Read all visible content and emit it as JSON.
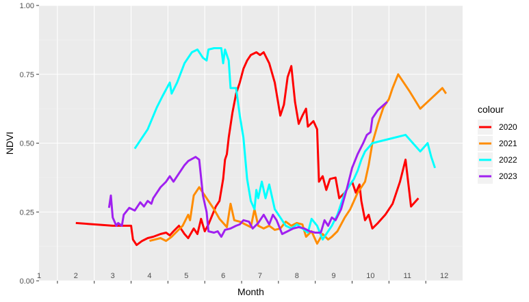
{
  "chart_data": {
    "type": "line",
    "title": "",
    "xlabel": "Month",
    "ylabel": "NDVI",
    "ylim": [
      0,
      1
    ],
    "y_ticks": [
      0,
      0.25,
      0.5,
      0.75,
      1
    ],
    "y_tick_labels": [
      "0.00",
      "0.25",
      "0.50",
      "0.75",
      "1.00"
    ],
    "xlim": [
      1,
      12.5
    ],
    "x_ticks": [
      1,
      2,
      3,
      4,
      5,
      6,
      7,
      8,
      9,
      10,
      11,
      12
    ],
    "x_tick_labels": [
      "1",
      "2",
      "3",
      "4",
      "5",
      "6",
      "7",
      "8",
      "9",
      "10",
      "11",
      "12"
    ],
    "grid": true,
    "legend": {
      "title": "colour",
      "position": "right"
    },
    "series": [
      {
        "name": "2020",
        "color": "#ff0000",
        "points": [
          [
            2,
            0.21
          ],
          [
            2.5,
            0.205
          ],
          [
            3,
            0.2
          ],
          [
            3.5,
            0.2
          ],
          [
            3.55,
            0.15
          ],
          [
            3.65,
            0.13
          ],
          [
            3.8,
            0.145
          ],
          [
            3.95,
            0.155
          ],
          [
            4.1,
            0.16
          ],
          [
            4.3,
            0.17
          ],
          [
            4.45,
            0.175
          ],
          [
            4.55,
            0.165
          ],
          [
            4.65,
            0.18
          ],
          [
            4.8,
            0.2
          ],
          [
            4.95,
            0.17
          ],
          [
            5.05,
            0.155
          ],
          [
            5.2,
            0.19
          ],
          [
            5.3,
            0.17
          ],
          [
            5.4,
            0.225
          ],
          [
            5.5,
            0.18
          ],
          [
            5.6,
            0.205
          ],
          [
            5.8,
            0.27
          ],
          [
            5.9,
            0.29
          ],
          [
            6,
            0.37
          ],
          [
            6.05,
            0.44
          ],
          [
            6.1,
            0.46
          ],
          [
            6.15,
            0.52
          ],
          [
            6.25,
            0.61
          ],
          [
            6.35,
            0.68
          ],
          [
            6.45,
            0.72
          ],
          [
            6.55,
            0.77
          ],
          [
            6.65,
            0.8
          ],
          [
            6.75,
            0.82
          ],
          [
            6.9,
            0.83
          ],
          [
            7,
            0.82
          ],
          [
            7.1,
            0.83
          ],
          [
            7.25,
            0.79
          ],
          [
            7.4,
            0.72
          ],
          [
            7.55,
            0.6
          ],
          [
            7.65,
            0.64
          ],
          [
            7.75,
            0.74
          ],
          [
            7.85,
            0.78
          ],
          [
            7.95,
            0.65
          ],
          [
            8.05,
            0.57
          ],
          [
            8.15,
            0.6
          ],
          [
            8.25,
            0.625
          ],
          [
            8.3,
            0.56
          ],
          [
            8.45,
            0.58
          ],
          [
            8.55,
            0.55
          ],
          [
            8.6,
            0.36
          ],
          [
            8.7,
            0.38
          ],
          [
            8.8,
            0.33
          ],
          [
            8.9,
            0.37
          ],
          [
            9.05,
            0.375
          ],
          [
            9.15,
            0.3
          ],
          [
            9.3,
            0.32
          ],
          [
            9.4,
            0.34
          ],
          [
            9.5,
            0.36
          ],
          [
            9.6,
            0.32
          ],
          [
            9.7,
            0.35
          ],
          [
            9.75,
            0.29
          ],
          [
            9.85,
            0.22
          ],
          [
            9.95,
            0.24
          ],
          [
            10.05,
            0.19
          ],
          [
            10.2,
            0.21
          ],
          [
            10.4,
            0.24
          ],
          [
            10.6,
            0.28
          ],
          [
            10.8,
            0.36
          ],
          [
            10.95,
            0.44
          ],
          [
            11.1,
            0.27
          ],
          [
            11.3,
            0.3
          ]
        ]
      },
      {
        "name": "2021",
        "color": "#ff8c00",
        "points": [
          [
            4,
            0.145
          ],
          [
            4.3,
            0.155
          ],
          [
            4.45,
            0.145
          ],
          [
            4.6,
            0.16
          ],
          [
            4.75,
            0.18
          ],
          [
            4.9,
            0.2
          ],
          [
            5.05,
            0.24
          ],
          [
            5.1,
            0.22
          ],
          [
            5.2,
            0.31
          ],
          [
            5.35,
            0.34
          ],
          [
            5.5,
            0.31
          ],
          [
            5.6,
            0.29
          ],
          [
            5.75,
            0.26
          ],
          [
            5.9,
            0.225
          ],
          [
            6.1,
            0.195
          ],
          [
            6.2,
            0.28
          ],
          [
            6.3,
            0.22
          ],
          [
            6.45,
            0.215
          ],
          [
            6.6,
            0.205
          ],
          [
            6.75,
            0.195
          ],
          [
            6.85,
            0.26
          ],
          [
            6.95,
            0.2
          ],
          [
            7.1,
            0.19
          ],
          [
            7.25,
            0.2
          ],
          [
            7.4,
            0.185
          ],
          [
            7.55,
            0.19
          ],
          [
            7.7,
            0.215
          ],
          [
            7.85,
            0.2
          ],
          [
            8,
            0.21
          ],
          [
            8.15,
            0.205
          ],
          [
            8.25,
            0.16
          ],
          [
            8.4,
            0.18
          ],
          [
            8.55,
            0.135
          ],
          [
            8.7,
            0.17
          ],
          [
            8.85,
            0.15
          ],
          [
            8.95,
            0.16
          ],
          [
            9.1,
            0.18
          ],
          [
            9.3,
            0.23
          ],
          [
            9.45,
            0.26
          ],
          [
            9.55,
            0.29
          ],
          [
            9.65,
            0.32
          ],
          [
            9.75,
            0.34
          ],
          [
            9.85,
            0.36
          ],
          [
            9.95,
            0.42
          ],
          [
            10.05,
            0.5
          ],
          [
            10.2,
            0.57
          ],
          [
            10.35,
            0.63
          ],
          [
            10.5,
            0.66
          ],
          [
            10.6,
            0.7
          ],
          [
            10.75,
            0.75
          ],
          [
            11.05,
            0.69
          ],
          [
            11.35,
            0.625
          ],
          [
            11.95,
            0.7
          ],
          [
            12.05,
            0.68
          ]
        ]
      },
      {
        "name": "2022",
        "color": "#00ffff",
        "points": [
          [
            3.6,
            0.48
          ],
          [
            3.95,
            0.55
          ],
          [
            4.2,
            0.63
          ],
          [
            4.35,
            0.67
          ],
          [
            4.55,
            0.72
          ],
          [
            4.6,
            0.68
          ],
          [
            4.75,
            0.72
          ],
          [
            4.95,
            0.79
          ],
          [
            5.15,
            0.83
          ],
          [
            5.3,
            0.84
          ],
          [
            5.45,
            0.81
          ],
          [
            5.55,
            0.8
          ],
          [
            5.6,
            0.84
          ],
          [
            5.75,
            0.845
          ],
          [
            5.95,
            0.845
          ],
          [
            6,
            0.79
          ],
          [
            6.05,
            0.84
          ],
          [
            6.15,
            0.8
          ],
          [
            6.2,
            0.7
          ],
          [
            6.35,
            0.7
          ],
          [
            6.45,
            0.6
          ],
          [
            6.55,
            0.52
          ],
          [
            6.65,
            0.37
          ],
          [
            6.75,
            0.29
          ],
          [
            6.85,
            0.26
          ],
          [
            6.9,
            0.33
          ],
          [
            6.95,
            0.3
          ],
          [
            7.05,
            0.36
          ],
          [
            7.15,
            0.3
          ],
          [
            7.25,
            0.35
          ],
          [
            7.4,
            0.26
          ],
          [
            7.55,
            0.23
          ],
          [
            7.7,
            0.2
          ],
          [
            7.85,
            0.19
          ],
          [
            8,
            0.205
          ],
          [
            8.15,
            0.19
          ],
          [
            8.3,
            0.175
          ],
          [
            8.4,
            0.225
          ],
          [
            8.55,
            0.2
          ],
          [
            8.7,
            0.15
          ],
          [
            8.8,
            0.17
          ],
          [
            8.95,
            0.2
          ],
          [
            9.1,
            0.24
          ],
          [
            9.3,
            0.32
          ],
          [
            9.45,
            0.35
          ],
          [
            9.55,
            0.37
          ],
          [
            9.65,
            0.4
          ],
          [
            9.75,
            0.44
          ],
          [
            9.85,
            0.47
          ],
          [
            10.05,
            0.5
          ],
          [
            10.5,
            0.515
          ],
          [
            10.95,
            0.53
          ],
          [
            11.35,
            0.47
          ],
          [
            11.55,
            0.5
          ],
          [
            11.65,
            0.45
          ],
          [
            11.75,
            0.41
          ]
        ]
      },
      {
        "name": "2023",
        "color": "#a020f0",
        "points": [
          [
            2.9,
            0.265
          ],
          [
            2.95,
            0.31
          ],
          [
            3,
            0.23
          ],
          [
            3.1,
            0.2
          ],
          [
            3.15,
            0.21
          ],
          [
            3.25,
            0.2
          ],
          [
            3.3,
            0.24
          ],
          [
            3.45,
            0.265
          ],
          [
            3.6,
            0.255
          ],
          [
            3.75,
            0.285
          ],
          [
            3.85,
            0.27
          ],
          [
            3.95,
            0.29
          ],
          [
            4.05,
            0.28
          ],
          [
            4.1,
            0.3
          ],
          [
            4.3,
            0.34
          ],
          [
            4.45,
            0.36
          ],
          [
            4.55,
            0.38
          ],
          [
            4.65,
            0.36
          ],
          [
            4.8,
            0.39
          ],
          [
            4.95,
            0.42
          ],
          [
            5.05,
            0.435
          ],
          [
            5.25,
            0.45
          ],
          [
            5.35,
            0.44
          ],
          [
            5.45,
            0.31
          ],
          [
            5.55,
            0.25
          ],
          [
            5.6,
            0.18
          ],
          [
            5.75,
            0.175
          ],
          [
            5.85,
            0.18
          ],
          [
            5.95,
            0.16
          ],
          [
            6.05,
            0.185
          ],
          [
            6.2,
            0.19
          ],
          [
            6.35,
            0.2
          ],
          [
            6.45,
            0.205
          ],
          [
            6.55,
            0.22
          ],
          [
            6.7,
            0.215
          ],
          [
            6.8,
            0.19
          ],
          [
            6.95,
            0.21
          ],
          [
            7.1,
            0.24
          ],
          [
            7.25,
            0.205
          ],
          [
            7.35,
            0.24
          ],
          [
            7.45,
            0.22
          ],
          [
            7.6,
            0.17
          ],
          [
            7.75,
            0.18
          ],
          [
            7.9,
            0.19
          ],
          [
            8.05,
            0.195
          ],
          [
            8.2,
            0.19
          ],
          [
            8.35,
            0.18
          ],
          [
            8.5,
            0.175
          ],
          [
            8.65,
            0.175
          ],
          [
            8.75,
            0.22
          ],
          [
            8.85,
            0.2
          ],
          [
            8.95,
            0.23
          ],
          [
            9.05,
            0.22
          ],
          [
            9.2,
            0.26
          ],
          [
            9.35,
            0.33
          ],
          [
            9.5,
            0.41
          ],
          [
            9.65,
            0.46
          ],
          [
            9.8,
            0.5
          ],
          [
            9.9,
            0.53
          ],
          [
            10,
            0.54
          ],
          [
            10.05,
            0.59
          ],
          [
            10.2,
            0.62
          ],
          [
            10.45,
            0.65
          ]
        ]
      }
    ]
  }
}
